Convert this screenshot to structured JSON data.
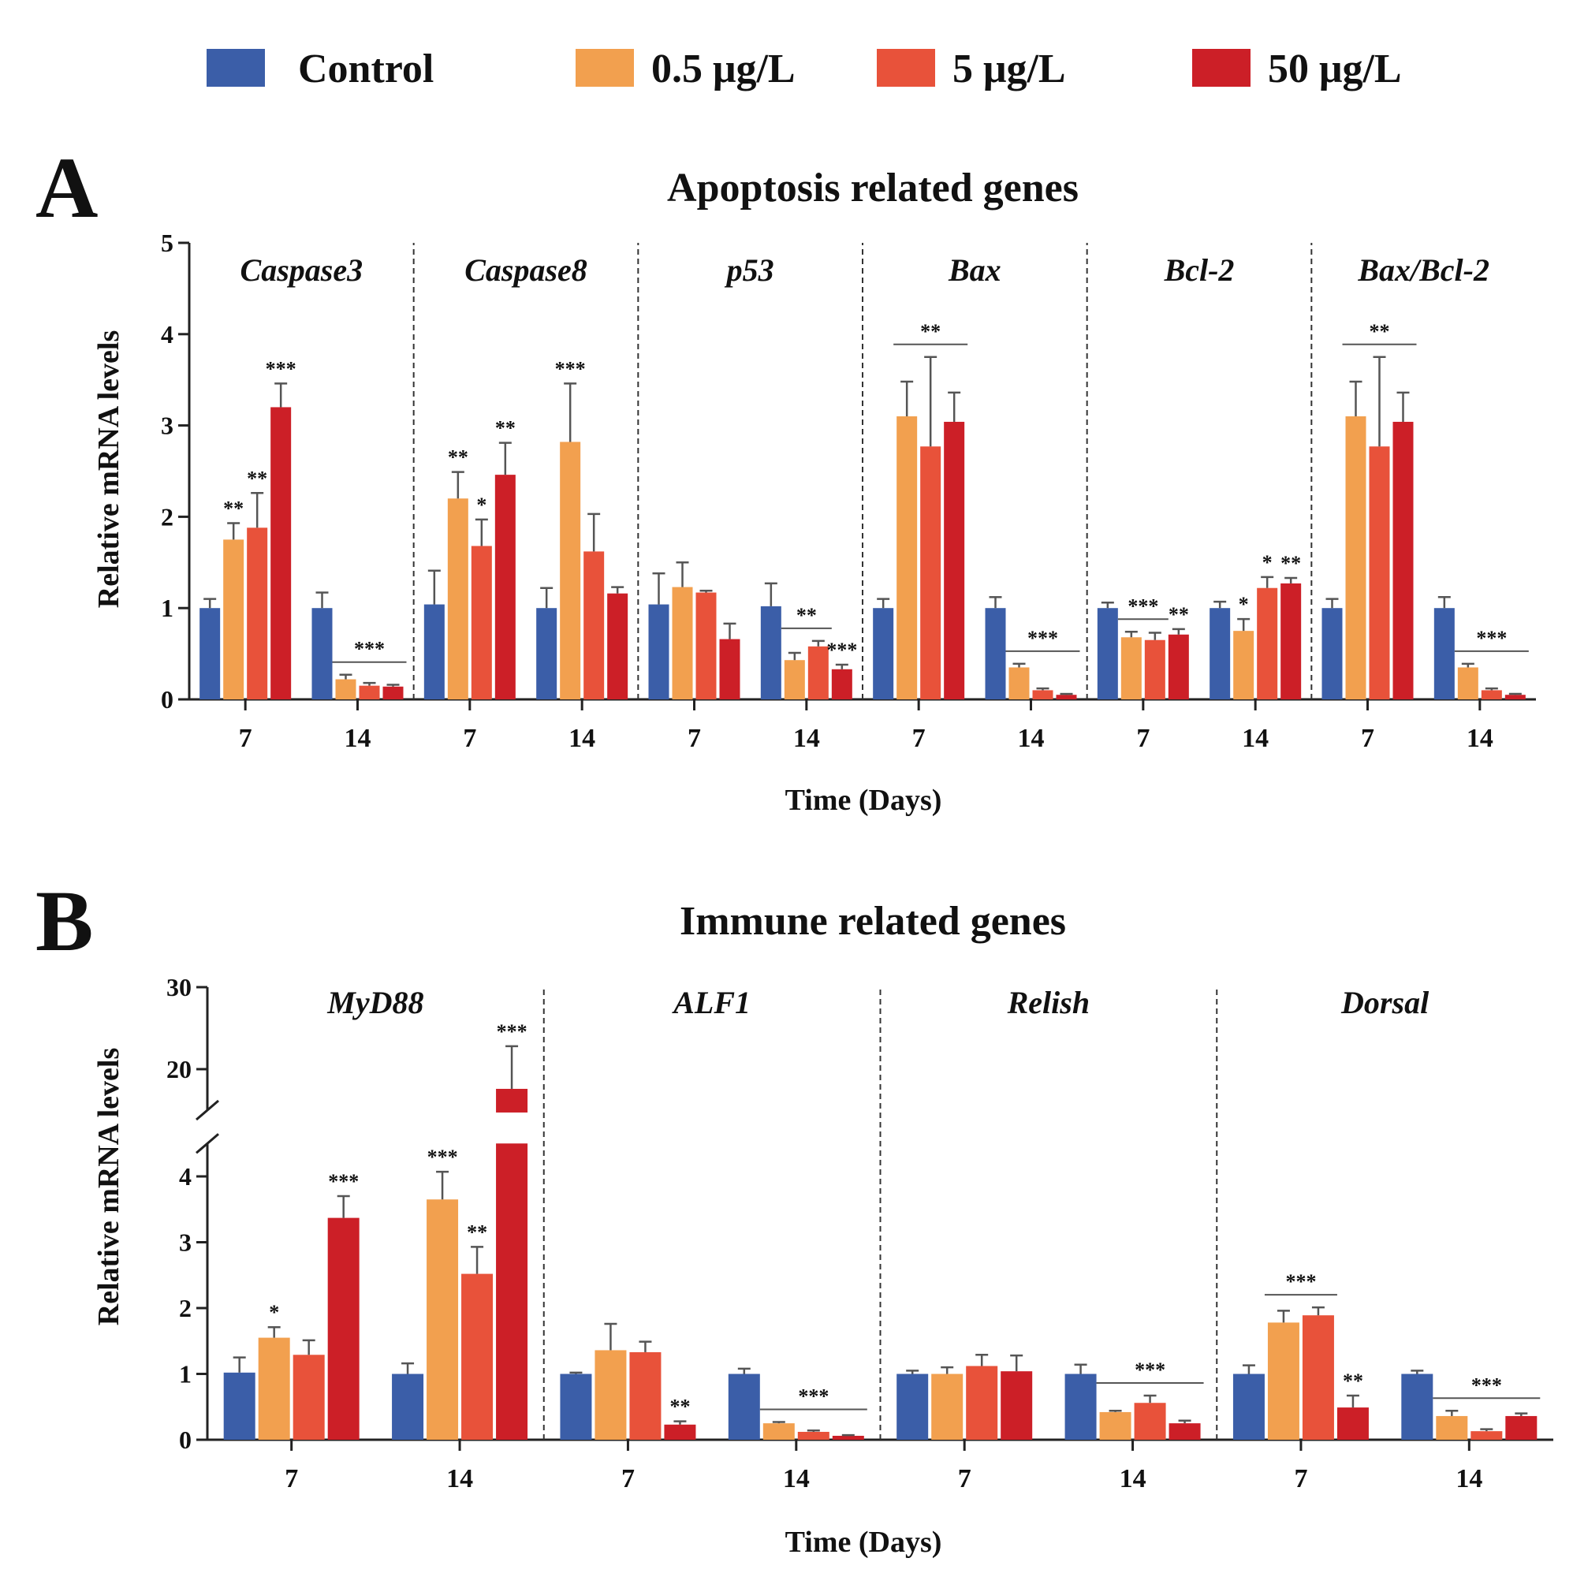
{
  "colors": {
    "control": "#3B5EA8",
    "c05": "#F2A04F",
    "c5": "#E8523A",
    "c50": "#CC1F27",
    "axis": "#222222"
  },
  "legend": [
    {
      "label": "Control",
      "color_key": "control"
    },
    {
      "label": "0.5 μg/L",
      "color_key": "c05"
    },
    {
      "label": "5 μg/L",
      "color_key": "c5"
    },
    {
      "label": "50 μg/L",
      "color_key": "c50"
    }
  ],
  "chart_data": [
    {
      "type": "bar",
      "panel": "A",
      "title": "Apoptosis related genes",
      "ylabel": "Relative mRNA levels",
      "xlabel": "Time (Days)",
      "ylim": [
        0,
        5
      ],
      "yticks": [
        0,
        1,
        2,
        3,
        4,
        5
      ],
      "series_names": [
        "Control",
        "0.5 μg/L",
        "5 μg/L",
        "50 μg/L"
      ],
      "groups": [
        {
          "gene": "Caspase3",
          "times": [
            {
              "time": "7",
              "values": [
                1.0,
                1.75,
                1.88,
                3.2
              ],
              "errors": [
                0.1,
                0.18,
                0.38,
                0.26
              ],
              "sig": [
                "",
                "**",
                "**",
                "***"
              ]
            },
            {
              "time": "14",
              "values": [
                1.0,
                0.22,
                0.15,
                0.14
              ],
              "errors": [
                0.17,
                0.05,
                0.03,
                0.02
              ],
              "sig": [],
              "bracket": "***"
            }
          ]
        },
        {
          "gene": "Caspase8",
          "times": [
            {
              "time": "7",
              "values": [
                1.04,
                2.2,
                1.68,
                2.46
              ],
              "errors": [
                0.37,
                0.29,
                0.29,
                0.35
              ],
              "sig": [
                "",
                "**",
                "*",
                "**"
              ]
            },
            {
              "time": "14",
              "values": [
                1.0,
                2.82,
                1.62,
                1.16
              ],
              "errors": [
                0.22,
                0.64,
                0.41,
                0.07
              ],
              "sig": [
                "",
                "***",
                "",
                ""
              ]
            }
          ]
        },
        {
          "gene": "p53",
          "times": [
            {
              "time": "7",
              "values": [
                1.04,
                1.23,
                1.17,
                0.66
              ],
              "errors": [
                0.34,
                0.27,
                0.02,
                0.17
              ],
              "sig": []
            },
            {
              "time": "14",
              "values": [
                1.02,
                0.43,
                0.58,
                0.33
              ],
              "errors": [
                0.25,
                0.08,
                0.06,
                0.05
              ],
              "sig": [
                "",
                "",
                "",
                "***"
              ],
              "bracket": "**",
              "bracket_span": [
                1,
                2
              ]
            }
          ]
        },
        {
          "gene": "Bax",
          "times": [
            {
              "time": "7",
              "values": [
                1.0,
                3.1,
                2.77,
                3.04
              ],
              "errors": [
                0.1,
                0.38,
                0.98,
                0.32
              ],
              "sig": [],
              "bracket": "**"
            },
            {
              "time": "14",
              "values": [
                1.0,
                0.35,
                0.1,
                0.05
              ],
              "errors": [
                0.12,
                0.04,
                0.02,
                0.01
              ],
              "sig": [],
              "bracket": "***"
            }
          ]
        },
        {
          "gene": "Bcl-2",
          "times": [
            {
              "time": "7",
              "values": [
                1.0,
                0.68,
                0.65,
                0.71
              ],
              "errors": [
                0.06,
                0.06,
                0.08,
                0.06
              ],
              "sig": [
                "",
                "",
                "",
                "**"
              ],
              "bracket": "***",
              "bracket_span": [
                1,
                2
              ]
            },
            {
              "time": "14",
              "values": [
                1.0,
                0.75,
                1.22,
                1.27
              ],
              "errors": [
                0.07,
                0.13,
                0.12,
                0.06
              ],
              "sig": [
                "",
                "*",
                "*",
                "**"
              ]
            }
          ]
        },
        {
          "gene": "Bax/Bcl-2",
          "times": [
            {
              "time": "7",
              "values": [
                1.0,
                3.1,
                2.77,
                3.04
              ],
              "errors": [
                0.1,
                0.38,
                0.98,
                0.32
              ],
              "sig": [],
              "bracket": "**"
            },
            {
              "time": "14",
              "values": [
                1.0,
                0.35,
                0.1,
                0.05
              ],
              "errors": [
                0.12,
                0.04,
                0.02,
                0.01
              ],
              "sig": [],
              "bracket": "***"
            }
          ]
        }
      ]
    },
    {
      "type": "bar",
      "panel": "B",
      "title": "Immune related genes",
      "ylabel": "Relative mRNA levels",
      "xlabel": "Time (Days)",
      "ylim": [
        0,
        30
      ],
      "axis_break": [
        4.5,
        15
      ],
      "yticks": [
        0,
        1,
        2,
        3,
        4,
        20,
        30
      ],
      "series_names": [
        "Control",
        "0.5 μg/L",
        "5 μg/L",
        "50 μg/L"
      ],
      "groups": [
        {
          "gene": "MyD88",
          "times": [
            {
              "time": "7",
              "values": [
                1.02,
                1.55,
                1.29,
                3.37
              ],
              "errors": [
                0.23,
                0.16,
                0.22,
                0.33
              ],
              "sig": [
                "",
                "*",
                "",
                "***"
              ]
            },
            {
              "time": "14",
              "values": [
                1.0,
                3.65,
                2.52,
                17.6
              ],
              "errors": [
                0.16,
                0.42,
                0.41,
                5.2
              ],
              "sig": [
                "",
                "***",
                "**",
                "***"
              ]
            }
          ]
        },
        {
          "gene": "ALF1",
          "times": [
            {
              "time": "7",
              "values": [
                1.0,
                1.36,
                1.33,
                0.23
              ],
              "errors": [
                0.02,
                0.4,
                0.16,
                0.05
              ],
              "sig": [
                "",
                "",
                "",
                "**"
              ]
            },
            {
              "time": "14",
              "values": [
                1.0,
                0.25,
                0.12,
                0.06
              ],
              "errors": [
                0.08,
                0.02,
                0.02,
                0.01
              ],
              "sig": [],
              "bracket": "***"
            }
          ]
        },
        {
          "gene": "Relish",
          "times": [
            {
              "time": "7",
              "values": [
                1.0,
                1.0,
                1.12,
                1.04
              ],
              "errors": [
                0.05,
                0.1,
                0.17,
                0.24
              ],
              "sig": []
            },
            {
              "time": "14",
              "values": [
                1.0,
                0.42,
                0.56,
                0.25
              ],
              "errors": [
                0.14,
                0.02,
                0.11,
                0.04
              ],
              "sig": [],
              "bracket": "***"
            }
          ]
        },
        {
          "gene": "Dorsal",
          "times": [
            {
              "time": "7",
              "values": [
                1.0,
                1.78,
                1.89,
                0.49
              ],
              "errors": [
                0.13,
                0.18,
                0.12,
                0.18
              ],
              "sig": [
                "",
                "",
                "",
                "**"
              ],
              "bracket": "***",
              "bracket_span": [
                1,
                2
              ]
            },
            {
              "time": "14",
              "values": [
                1.0,
                0.36,
                0.13,
                0.36
              ],
              "errors": [
                0.05,
                0.08,
                0.03,
                0.04
              ],
              "sig": [],
              "bracket": "***"
            }
          ]
        }
      ]
    }
  ]
}
